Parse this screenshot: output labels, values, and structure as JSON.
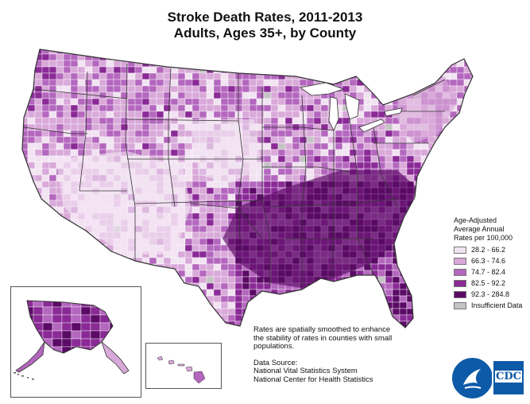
{
  "title": {
    "line1": "Stroke Death Rates, 2011-2013",
    "line2": "Adults, Ages 35+, by County"
  },
  "legend": {
    "heading_line1": "Age-Adjusted",
    "heading_line2": "Average Annual",
    "heading_line3": "Rates per 100,000",
    "items": [
      {
        "label": "28.2 - 66.2",
        "color": "#f2e3f2"
      },
      {
        "label": "66.3 - 74.6",
        "color": "#d9a9d9"
      },
      {
        "label": "74.7 - 82.4",
        "color": "#b467be"
      },
      {
        "label": "82.5 - 92.2",
        "color": "#8a2a96"
      },
      {
        "label": "92.3 - 284.8",
        "color": "#5b0a66"
      },
      {
        "label": "Insufficient Data",
        "color": "#c4c4c4"
      }
    ]
  },
  "notes": {
    "smoothing_line1": "Rates are spatially smoothed to enhance",
    "smoothing_line2": "the stability of rates in counties with small",
    "smoothing_line3": "populations.",
    "source_heading": "Data Source:",
    "source_line1": "National Vital Statistics System",
    "source_line2": "National Center for Health Statistics"
  },
  "logo": {
    "text": "CDC",
    "color": "#0d5aa8"
  },
  "colors": {
    "state_border": "#333333",
    "county_border": "#ffffff"
  }
}
